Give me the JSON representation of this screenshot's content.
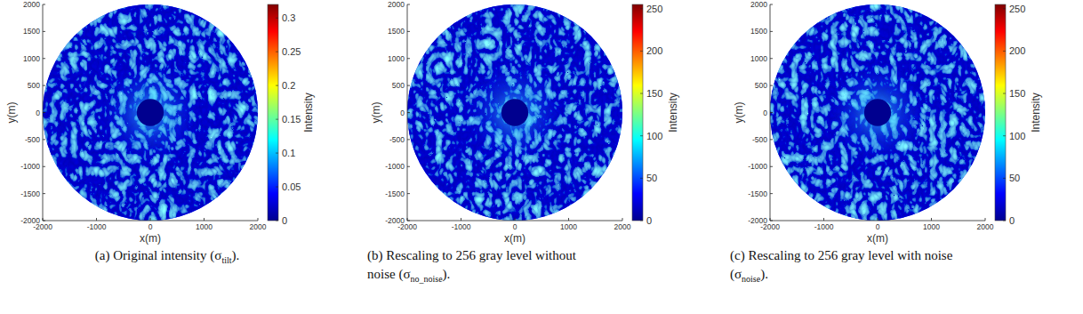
{
  "chart_data": [
    {
      "type": "heatmap",
      "color": "jet",
      "xlabel": "x(m)",
      "ylabel": "y(m)",
      "xlim": [
        -2000,
        2000
      ],
      "ylim": [
        -2000,
        2000
      ],
      "xticks": [
        -2000,
        -1000,
        0,
        1000,
        2000
      ],
      "yticks": [
        -2000,
        -1500,
        -1000,
        -500,
        0,
        500,
        1000,
        1500,
        2000
      ],
      "outer_radius": 2000,
      "inner_radius": 250,
      "clabel": "Intensity",
      "clim": [
        0,
        0.32
      ],
      "cticks": [
        0,
        0.05,
        0.1,
        0.15,
        0.2,
        0.25,
        0.3
      ],
      "caption": [
        [
          "(a) Original intensity (σ",
          "tilt",
          ")."
        ]
      ]
    },
    {
      "type": "heatmap",
      "color": "jet",
      "xlabel": "x(m)",
      "ylabel": "y(m)",
      "xlim": [
        -2000,
        2000
      ],
      "ylim": [
        -2000,
        2000
      ],
      "xticks": [
        -2000,
        -1000,
        0,
        1000,
        2000
      ],
      "yticks": [
        -2000,
        -1500,
        -1000,
        -500,
        0,
        500,
        1000,
        1500,
        2000
      ],
      "outer_radius": 2000,
      "inner_radius": 250,
      "clabel": "Intensity",
      "clim": [
        0,
        255
      ],
      "cticks": [
        0,
        50,
        100,
        150,
        200,
        250
      ],
      "caption": [
        [
          "(b) Rescaling to 256 gray level without"
        ],
        [
          "noise (σ",
          "no_noise",
          ")."
        ]
      ]
    },
    {
      "type": "heatmap",
      "color": "jet",
      "xlabel": "x(m)",
      "ylabel": "y(m)",
      "xlim": [
        -2000,
        2000
      ],
      "ylim": [
        -2000,
        2000
      ],
      "xticks": [
        -2000,
        -1000,
        0,
        1000,
        2000
      ],
      "yticks": [
        -2000,
        -1500,
        -1000,
        -500,
        0,
        500,
        1000,
        1500,
        2000
      ],
      "outer_radius": 2000,
      "inner_radius": 250,
      "clabel": "Intensity",
      "clim": [
        0,
        255
      ],
      "cticks": [
        0,
        50,
        100,
        150,
        200,
        250
      ],
      "caption": [
        [
          "(c) Rescaling to 256 gray level with noise"
        ],
        [
          "(σ",
          "noise",
          ")."
        ]
      ]
    }
  ]
}
